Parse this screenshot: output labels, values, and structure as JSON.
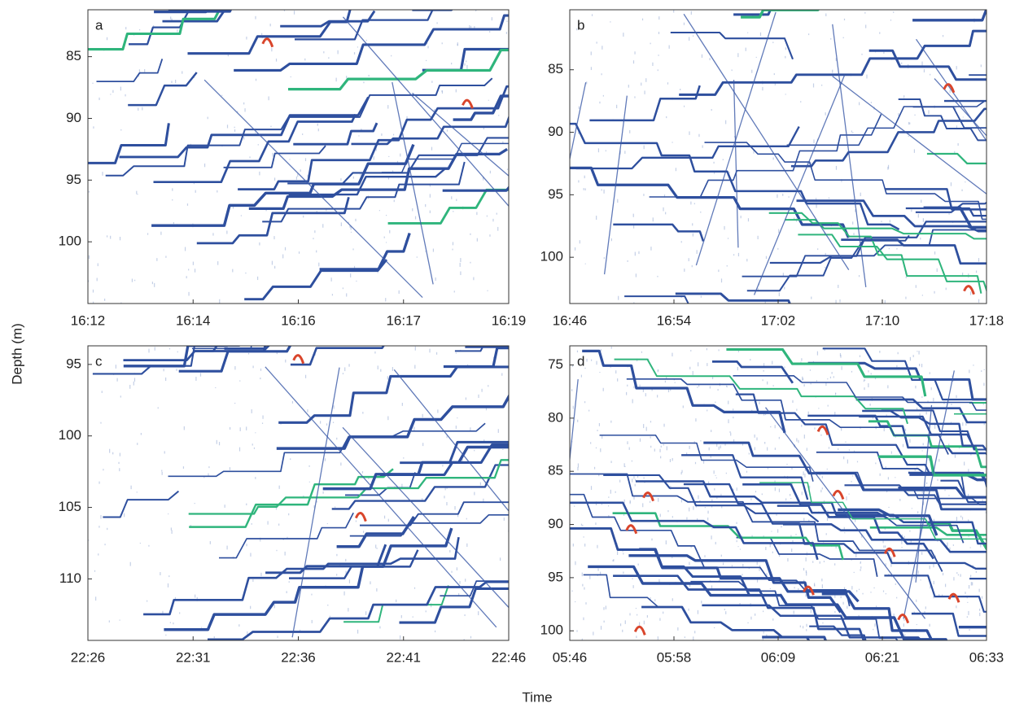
{
  "figure": {
    "xlabel": "Time",
    "ylabel": "Depth (m)"
  },
  "chart_data": [
    {
      "type": "echogram",
      "label": "a",
      "xticks": [
        "16:12",
        "16:14",
        "16:16",
        "16:17",
        "16:19"
      ],
      "ylim": [
        81.2,
        105
      ],
      "y_inverted": true,
      "yticks": [
        85,
        90,
        95,
        100
      ]
    },
    {
      "type": "echogram",
      "label": "b",
      "xticks": [
        "16:46",
        "16:54",
        "17:02",
        "17:10",
        "17:18"
      ],
      "ylim": [
        80.2,
        103.7
      ],
      "y_inverted": true,
      "yticks": [
        85,
        90,
        95,
        100
      ]
    },
    {
      "type": "echogram",
      "label": "c",
      "xticks": [
        "22:26",
        "22:31",
        "22:36",
        "22:41",
        "22:46"
      ],
      "ylim": [
        93.7,
        114.3
      ],
      "y_inverted": true,
      "yticks": [
        95,
        100,
        105,
        110
      ]
    },
    {
      "type": "echogram",
      "label": "d",
      "xticks": [
        "05:46",
        "05:58",
        "06:09",
        "06:21",
        "06:33"
      ],
      "ylim": [
        73.2,
        100.9
      ],
      "y_inverted": true,
      "yticks": [
        75,
        80,
        85,
        90,
        95,
        100
      ]
    }
  ]
}
